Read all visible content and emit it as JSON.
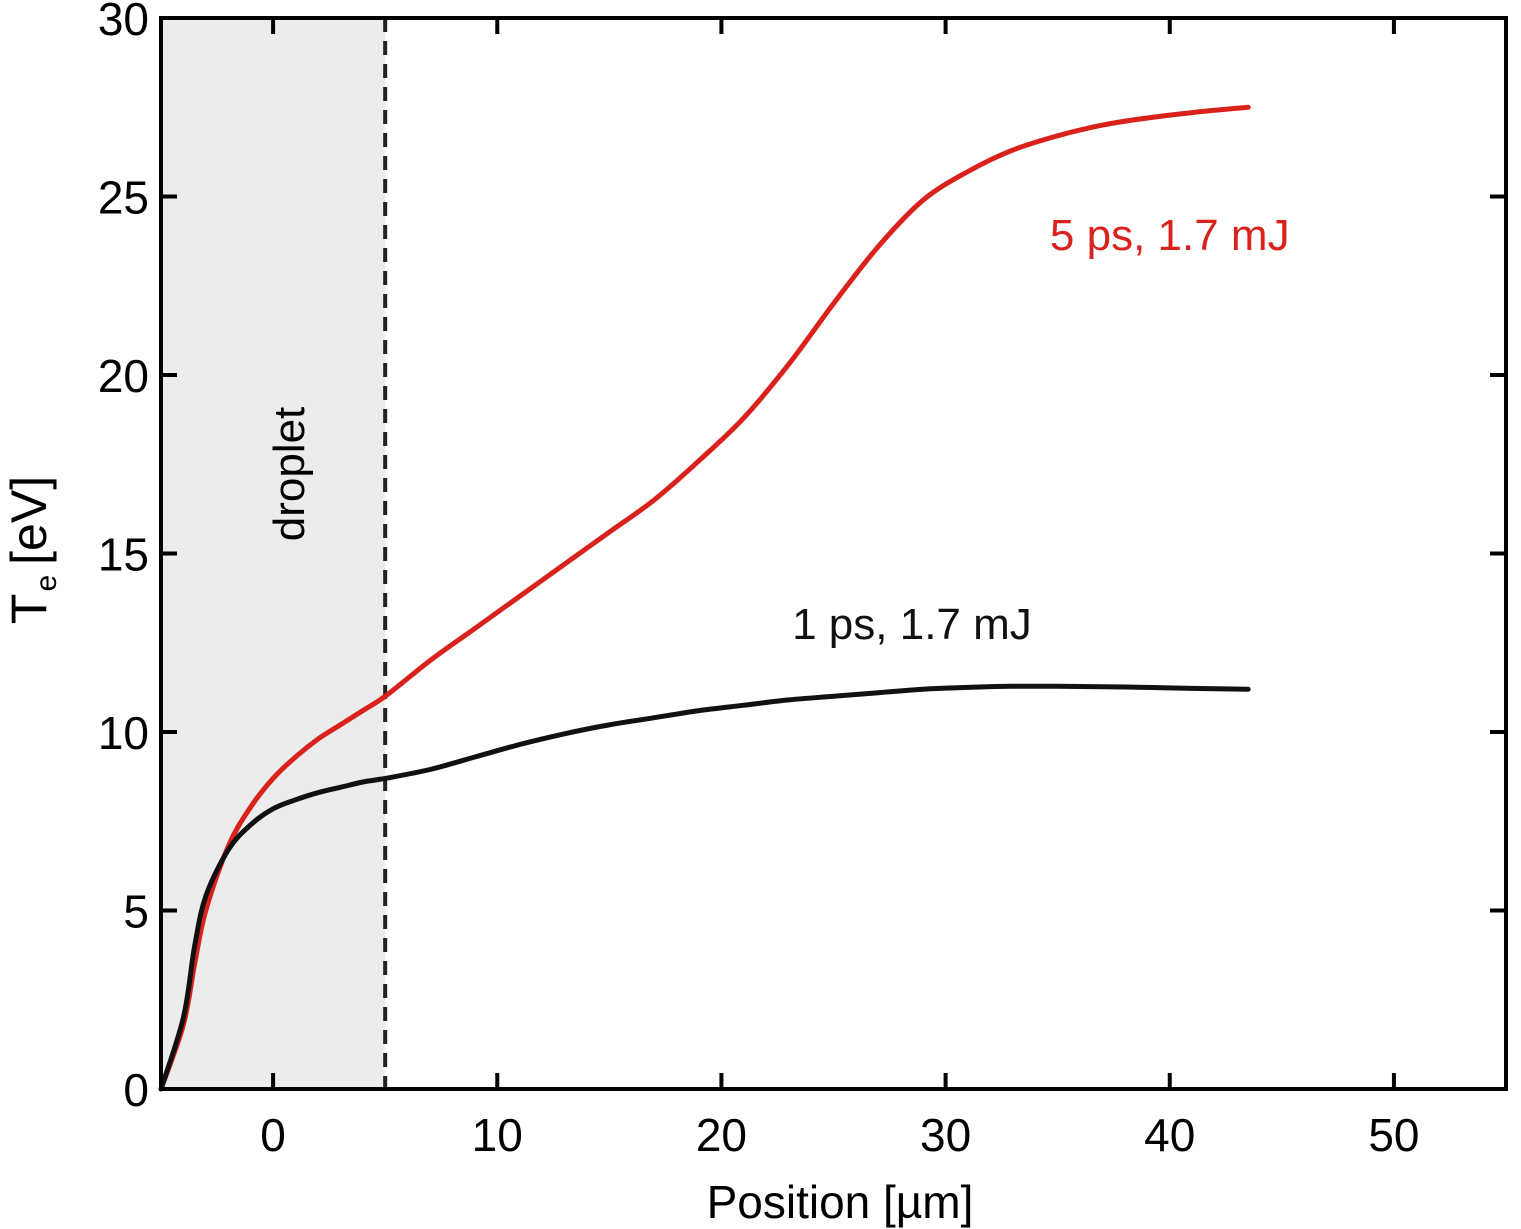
{
  "chart_data": {
    "type": "line",
    "title": "",
    "xlabel": "Position [µm]",
    "ylabel_main": "T",
    "ylabel_sub": "e",
    "ylabel_unit": "[eV]",
    "xlim": [
      -5,
      55
    ],
    "ylim": [
      0,
      30
    ],
    "xticks": [
      0,
      10,
      20,
      30,
      40,
      50
    ],
    "yticks": [
      0,
      5,
      10,
      15,
      20,
      25,
      30
    ],
    "grid": false,
    "shaded_region": {
      "x_from": -5,
      "x_to": 5,
      "color": "#ececec",
      "label": "droplet"
    },
    "vline": {
      "x": 5,
      "style": "dashed",
      "color": "#222222"
    },
    "series": [
      {
        "name": "5 ps, 1.7 mJ",
        "color": "#d9221c",
        "x": [
          -5,
          -4,
          -3.5,
          -3,
          -2,
          -1,
          0,
          1,
          2,
          3,
          4,
          5,
          7,
          9,
          11,
          13,
          15,
          17,
          19,
          21,
          23,
          25,
          27,
          29,
          31,
          33,
          35,
          37,
          39,
          41,
          43.5
        ],
        "y": [
          0,
          1.8,
          3.5,
          5.0,
          6.8,
          7.9,
          8.7,
          9.3,
          9.8,
          10.2,
          10.6,
          11.0,
          12.0,
          12.9,
          13.8,
          14.7,
          15.6,
          16.5,
          17.6,
          18.8,
          20.3,
          22.0,
          23.6,
          24.9,
          25.7,
          26.3,
          26.7,
          27.0,
          27.2,
          27.35,
          27.5
        ]
      },
      {
        "name": "1 ps, 1.7 mJ",
        "color": "#111111",
        "x": [
          -5,
          -4,
          -3.5,
          -3,
          -2,
          -1,
          0,
          1,
          2,
          3,
          4,
          5,
          7,
          9,
          11,
          13,
          15,
          17,
          19,
          21,
          23,
          25,
          27,
          29,
          31,
          33,
          35,
          37,
          39,
          41,
          43.5
        ],
        "y": [
          0,
          2.0,
          4.0,
          5.4,
          6.7,
          7.4,
          7.85,
          8.1,
          8.3,
          8.45,
          8.6,
          8.7,
          8.95,
          9.3,
          9.65,
          9.95,
          10.2,
          10.4,
          10.6,
          10.75,
          10.9,
          11.0,
          11.1,
          11.2,
          11.25,
          11.28,
          11.28,
          11.27,
          11.25,
          11.22,
          11.2
        ]
      }
    ],
    "annotations": [
      {
        "text": "5 ps, 1.7 mJ",
        "x": 40,
        "y": 23.5,
        "color": "#d9221c"
      },
      {
        "text": "1 ps, 1.7 mJ",
        "x": 28.5,
        "y": 12.6,
        "color": "#111111"
      }
    ]
  }
}
